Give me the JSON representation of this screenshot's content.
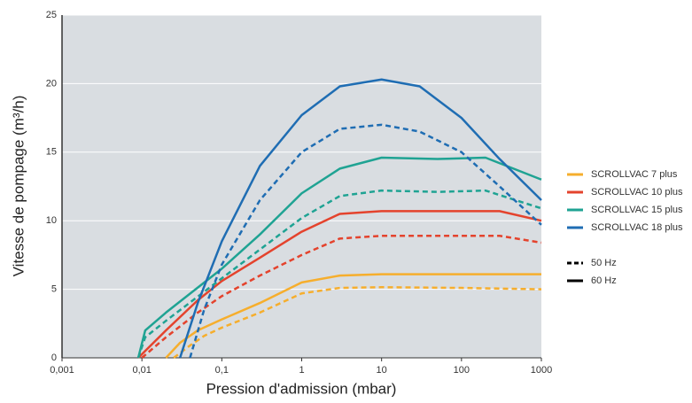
{
  "chart_data": {
    "type": "line",
    "x_label": "Pression d'admission (mbar)",
    "y_label": "Vitesse de pompage (m³/h)",
    "xscale": "log",
    "xlim": [
      0.001,
      1000
    ],
    "xticks": [
      {
        "value": 0.001,
        "label": "0,001"
      },
      {
        "value": 0.01,
        "label": "0,01"
      },
      {
        "value": 0.1,
        "label": "0,1"
      },
      1,
      10,
      100,
      1000
    ],
    "ylim": [
      0,
      25
    ],
    "yticks": [
      0,
      5,
      10,
      15,
      20,
      25
    ],
    "grid": true,
    "legend": "right",
    "line_styles": [
      {
        "label": "50 Hz",
        "dash": "dashed"
      },
      {
        "label": "60 Hz",
        "dash": "solid"
      }
    ],
    "series": [
      {
        "name": "SCROLLVAC 7 plus",
        "color": "#f6ae2d",
        "lines": [
          {
            "dash": "dashed",
            "x": [
              0.025,
              0.04,
              0.06,
              0.1,
              0.3,
              1,
              3,
              10,
              100,
              1000
            ],
            "values": [
              0,
              0.9,
              1.6,
              2.2,
              3.3,
              4.7,
              5.1,
              5.15,
              5.1,
              5.0
            ]
          },
          {
            "dash": "solid",
            "x": [
              0.02,
              0.03,
              0.05,
              0.1,
              0.3,
              1,
              3,
              10,
              100,
              1000
            ],
            "values": [
              0,
              1.1,
              2.0,
              2.8,
              4.0,
              5.5,
              6.0,
              6.1,
              6.1,
              6.1
            ]
          }
        ]
      },
      {
        "name": "SCROLLVAC 10 plus",
        "color": "#e4432d",
        "lines": [
          {
            "dash": "dashed",
            "x": [
              0.01,
              0.02,
              0.05,
              0.1,
              0.3,
              1,
              3,
              10,
              100,
              300,
              1000
            ],
            "values": [
              0,
              1.5,
              3.3,
              4.5,
              6.0,
              7.5,
              8.7,
              8.9,
              8.9,
              8.9,
              8.4
            ]
          },
          {
            "dash": "solid",
            "x": [
              0.009,
              0.02,
              0.05,
              0.1,
              0.3,
              1,
              3,
              10,
              100,
              300,
              1000
            ],
            "values": [
              0,
              2.0,
              4.2,
              5.6,
              7.3,
              9.2,
              10.5,
              10.7,
              10.7,
              10.7,
              10.0
            ]
          }
        ]
      },
      {
        "name": "SCROLLVAC 15 plus",
        "color": "#1fa393",
        "lines": [
          {
            "dash": "dashed",
            "x": [
              0.009,
              0.011,
              0.02,
              0.1,
              0.3,
              1,
              3,
              10,
              50,
              200,
              1000
            ],
            "values": [
              0,
              1.5,
              2.7,
              5.8,
              7.9,
              10.2,
              11.8,
              12.2,
              12.1,
              12.2,
              10.9
            ]
          },
          {
            "dash": "solid",
            "x": [
              0.009,
              0.011,
              0.02,
              0.1,
              0.3,
              1,
              3,
              10,
              50,
              200,
              1000
            ],
            "values": [
              0,
              2.0,
              3.3,
              6.5,
              9.0,
              12.0,
              13.8,
              14.6,
              14.5,
              14.6,
              13.0
            ]
          }
        ]
      },
      {
        "name": "SCROLLVAC 18 plus",
        "color": "#1f6db3",
        "lines": [
          {
            "dash": "dashed",
            "x": [
              0.04,
              0.06,
              0.1,
              0.3,
              1,
              3,
              10,
              30,
              100,
              300,
              1000
            ],
            "values": [
              0,
              3.5,
              6.8,
              11.5,
              15.0,
              16.7,
              17.0,
              16.5,
              15.0,
              12.5,
              9.7
            ]
          },
          {
            "dash": "solid",
            "x": [
              0.03,
              0.05,
              0.1,
              0.3,
              1,
              3,
              10,
              30,
              100,
              300,
              1000
            ],
            "values": [
              0,
              4.0,
              8.5,
              14.0,
              17.7,
              19.8,
              20.3,
              19.8,
              17.5,
              14.5,
              11.5
            ]
          }
        ]
      }
    ]
  }
}
